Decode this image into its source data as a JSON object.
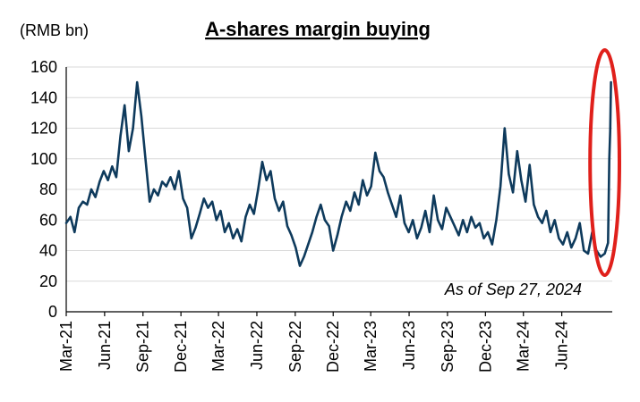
{
  "chart_data": {
    "type": "line",
    "title": "A-shares margin buying",
    "ylabel": "(RMB bn)",
    "xlabel": "",
    "annotation": "As of Sep 27, 2024",
    "ylim": [
      0,
      160
    ],
    "yticks": [
      0,
      20,
      40,
      60,
      80,
      100,
      120,
      140,
      160
    ],
    "xlim": [
      "2021-03-01",
      "2024-09-30"
    ],
    "xticks": [
      "Mar-21",
      "Jun-21",
      "Sep-21",
      "Dec-21",
      "Mar-22",
      "Jun-22",
      "Sep-22",
      "Dec-22",
      "Mar-23",
      "Jun-23",
      "Sep-23",
      "Dec-23",
      "Mar-24",
      "Jun-24"
    ],
    "grid": "horizontal",
    "colors": {
      "series": "#0e3a5c",
      "highlight": "#e0201b"
    },
    "highlight": {
      "shape": "ellipse",
      "x_range": [
        "2024-08-25",
        "2024-09-30"
      ]
    },
    "series": [
      {
        "name": "",
        "points": [
          [
            "2021-03-01",
            58
          ],
          [
            "2021-03-11",
            62
          ],
          [
            "2021-03-21",
            52
          ],
          [
            "2021-03-31",
            68
          ],
          [
            "2021-04-10",
            72
          ],
          [
            "2021-04-20",
            70
          ],
          [
            "2021-04-30",
            80
          ],
          [
            "2021-05-10",
            75
          ],
          [
            "2021-05-20",
            85
          ],
          [
            "2021-05-30",
            92
          ],
          [
            "2021-06-09",
            86
          ],
          [
            "2021-06-19",
            95
          ],
          [
            "2021-06-29",
            88
          ],
          [
            "2021-07-09",
            115
          ],
          [
            "2021-07-19",
            135
          ],
          [
            "2021-07-29",
            105
          ],
          [
            "2021-08-08",
            120
          ],
          [
            "2021-08-18",
            150
          ],
          [
            "2021-08-28",
            128
          ],
          [
            "2021-09-07",
            100
          ],
          [
            "2021-09-17",
            72
          ],
          [
            "2021-09-27",
            80
          ],
          [
            "2021-10-07",
            76
          ],
          [
            "2021-10-17",
            85
          ],
          [
            "2021-10-27",
            82
          ],
          [
            "2021-11-06",
            88
          ],
          [
            "2021-11-16",
            80
          ],
          [
            "2021-11-26",
            92
          ],
          [
            "2021-12-06",
            74
          ],
          [
            "2021-12-16",
            68
          ],
          [
            "2021-12-26",
            48
          ],
          [
            "2022-01-05",
            55
          ],
          [
            "2022-01-15",
            64
          ],
          [
            "2022-01-25",
            74
          ],
          [
            "2022-02-04",
            68
          ],
          [
            "2022-02-14",
            72
          ],
          [
            "2022-02-24",
            60
          ],
          [
            "2022-03-06",
            66
          ],
          [
            "2022-03-16",
            52
          ],
          [
            "2022-03-26",
            58
          ],
          [
            "2022-04-05",
            48
          ],
          [
            "2022-04-15",
            54
          ],
          [
            "2022-04-25",
            46
          ],
          [
            "2022-05-05",
            62
          ],
          [
            "2022-05-15",
            70
          ],
          [
            "2022-05-25",
            64
          ],
          [
            "2022-06-04",
            80
          ],
          [
            "2022-06-14",
            98
          ],
          [
            "2022-06-24",
            86
          ],
          [
            "2022-07-04",
            92
          ],
          [
            "2022-07-14",
            74
          ],
          [
            "2022-07-24",
            66
          ],
          [
            "2022-08-03",
            72
          ],
          [
            "2022-08-13",
            56
          ],
          [
            "2022-08-23",
            50
          ],
          [
            "2022-09-02",
            42
          ],
          [
            "2022-09-12",
            30
          ],
          [
            "2022-09-22",
            36
          ],
          [
            "2022-10-02",
            44
          ],
          [
            "2022-10-12",
            52
          ],
          [
            "2022-10-22",
            62
          ],
          [
            "2022-11-01",
            70
          ],
          [
            "2022-11-11",
            60
          ],
          [
            "2022-11-21",
            56
          ],
          [
            "2022-12-01",
            40
          ],
          [
            "2022-12-11",
            50
          ],
          [
            "2022-12-21",
            62
          ],
          [
            "2023-01-01",
            72
          ],
          [
            "2023-01-11",
            66
          ],
          [
            "2023-01-21",
            78
          ],
          [
            "2023-01-31",
            70
          ],
          [
            "2023-02-10",
            86
          ],
          [
            "2023-02-20",
            76
          ],
          [
            "2023-03-02",
            82
          ],
          [
            "2023-03-12",
            104
          ],
          [
            "2023-03-22",
            92
          ],
          [
            "2023-04-01",
            88
          ],
          [
            "2023-04-11",
            78
          ],
          [
            "2023-04-21",
            70
          ],
          [
            "2023-05-01",
            62
          ],
          [
            "2023-05-11",
            76
          ],
          [
            "2023-05-21",
            58
          ],
          [
            "2023-05-31",
            52
          ],
          [
            "2023-06-10",
            60
          ],
          [
            "2023-06-20",
            48
          ],
          [
            "2023-06-30",
            55
          ],
          [
            "2023-07-10",
            66
          ],
          [
            "2023-07-20",
            52
          ],
          [
            "2023-07-30",
            76
          ],
          [
            "2023-08-09",
            60
          ],
          [
            "2023-08-19",
            54
          ],
          [
            "2023-08-29",
            68
          ],
          [
            "2023-09-08",
            62
          ],
          [
            "2023-09-18",
            56
          ],
          [
            "2023-09-28",
            50
          ],
          [
            "2023-10-08",
            60
          ],
          [
            "2023-10-18",
            52
          ],
          [
            "2023-10-28",
            62
          ],
          [
            "2023-11-07",
            55
          ],
          [
            "2023-11-17",
            58
          ],
          [
            "2023-11-27",
            48
          ],
          [
            "2023-12-07",
            52
          ],
          [
            "2023-12-17",
            44
          ],
          [
            "2023-12-27",
            60
          ],
          [
            "2024-01-06",
            82
          ],
          [
            "2024-01-16",
            120
          ],
          [
            "2024-01-26",
            90
          ],
          [
            "2024-02-05",
            78
          ],
          [
            "2024-02-15",
            105
          ],
          [
            "2024-02-25",
            86
          ],
          [
            "2024-03-06",
            72
          ],
          [
            "2024-03-16",
            96
          ],
          [
            "2024-03-26",
            70
          ],
          [
            "2024-04-05",
            62
          ],
          [
            "2024-04-15",
            58
          ],
          [
            "2024-04-25",
            66
          ],
          [
            "2024-05-05",
            52
          ],
          [
            "2024-05-15",
            60
          ],
          [
            "2024-05-25",
            48
          ],
          [
            "2024-06-04",
            44
          ],
          [
            "2024-06-14",
            52
          ],
          [
            "2024-06-24",
            42
          ],
          [
            "2024-07-04",
            48
          ],
          [
            "2024-07-14",
            58
          ],
          [
            "2024-07-24",
            40
          ],
          [
            "2024-08-03",
            38
          ],
          [
            "2024-08-13",
            52
          ],
          [
            "2024-08-23",
            40
          ],
          [
            "2024-09-02",
            36
          ],
          [
            "2024-09-12",
            38
          ],
          [
            "2024-09-20",
            45
          ],
          [
            "2024-09-23",
            100
          ],
          [
            "2024-09-25",
            118
          ],
          [
            "2024-09-27",
            150
          ]
        ]
      }
    ]
  }
}
